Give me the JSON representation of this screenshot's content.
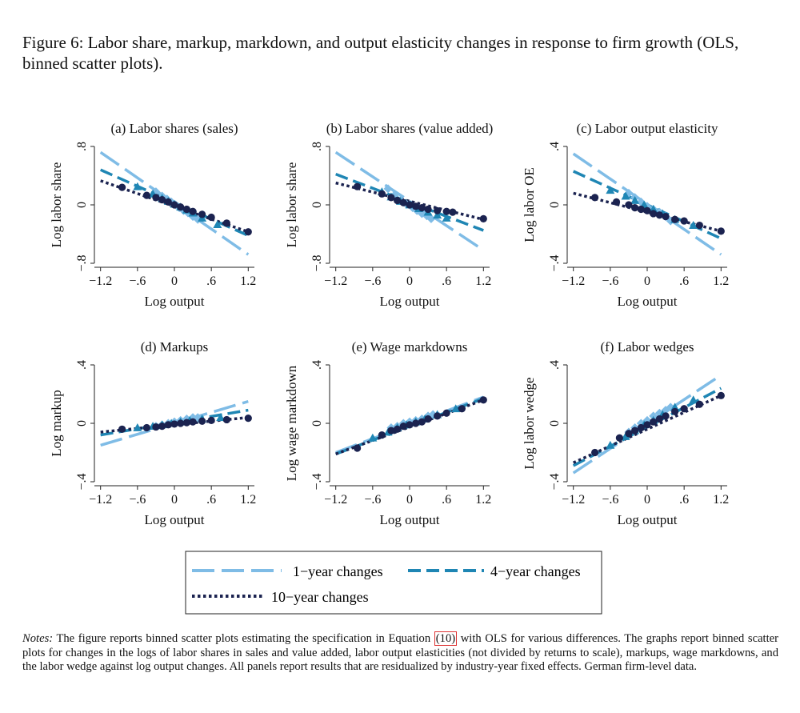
{
  "figure": {
    "title": "Figure 6: Labor share, markup, markdown, and output elasticity changes in response to firm growth (OLS, binned scatter plots)."
  },
  "colors": {
    "one_year": "#7fbce6",
    "four_year": "#1f86b4",
    "ten_year": "#1b2350",
    "axis": "#222222"
  },
  "legend": {
    "items": [
      {
        "key": "one_year",
        "label": "1−year changes",
        "dash": "long"
      },
      {
        "key": "four_year",
        "label": "4−year changes",
        "dash": "medium"
      },
      {
        "key": "ten_year",
        "label": "10−year changes",
        "dash": "dot"
      }
    ]
  },
  "chart_data": [
    {
      "type": "scatter",
      "title": "(a) Labor shares (sales)",
      "xlabel": "Log output",
      "ylabel": "Log labor share",
      "xlim": [
        -1.3,
        1.3
      ],
      "ylim": [
        -0.8,
        0.8
      ],
      "xticks": [
        "-1.2",
        "-.6",
        "0",
        ".6",
        "1.2"
      ],
      "yticks": [
        "-.8",
        "0",
        ".8"
      ],
      "lines": {
        "one_year": {
          "x": [
            -1.2,
            1.2
          ],
          "y": [
            0.72,
            -0.68
          ]
        },
        "four_year": {
          "x": [
            -1.2,
            1.2
          ],
          "y": [
            0.48,
            -0.42
          ]
        },
        "ten_year": {
          "x": [
            -1.2,
            1.2
          ],
          "y": [
            0.33,
            -0.37
          ]
        }
      },
      "series": [
        {
          "name": "1-year changes",
          "marker": "diamond",
          "x": [
            -0.3,
            -0.2,
            -0.12,
            -0.05,
            0.02,
            0.08,
            0.15,
            0.22,
            0.3,
            0.38
          ],
          "y": [
            0.18,
            0.12,
            0.08,
            0.04,
            0.0,
            -0.04,
            -0.08,
            -0.11,
            -0.16,
            -0.2
          ]
        },
        {
          "name": "4-year changes",
          "marker": "triangle",
          "x": [
            -0.6,
            -0.35,
            -0.2,
            -0.1,
            0.0,
            0.1,
            0.2,
            0.3,
            0.45,
            0.7
          ],
          "y": [
            0.25,
            0.15,
            0.09,
            0.05,
            0.01,
            -0.03,
            -0.07,
            -0.11,
            -0.18,
            -0.27
          ]
        },
        {
          "name": "10-year changes",
          "marker": "circle",
          "x": [
            -0.85,
            -0.45,
            -0.3,
            -0.2,
            -0.1,
            0.0,
            0.1,
            0.2,
            0.3,
            0.45,
            0.6,
            0.85,
            1.2
          ],
          "y": [
            0.24,
            0.13,
            0.1,
            0.07,
            0.04,
            0.0,
            -0.03,
            -0.06,
            -0.09,
            -0.13,
            -0.17,
            -0.25,
            -0.37
          ]
        }
      ]
    },
    {
      "type": "scatter",
      "title": "(b) Labor shares (value added)",
      "xlabel": "Log output",
      "ylabel": "Log labor share",
      "xlim": [
        -1.3,
        1.3
      ],
      "ylim": [
        -0.8,
        0.8
      ],
      "xticks": [
        "-1.2",
        "-.6",
        "0",
        ".6",
        "1.2"
      ],
      "yticks": [
        "-.8",
        "0",
        ".8"
      ],
      "lines": {
        "one_year": {
          "x": [
            -1.2,
            1.2
          ],
          "y": [
            0.72,
            -0.62
          ]
        },
        "four_year": {
          "x": [
            -1.2,
            1.2
          ],
          "y": [
            0.42,
            -0.35
          ]
        },
        "ten_year": {
          "x": [
            -1.2,
            1.2
          ],
          "y": [
            0.3,
            -0.2
          ]
        }
      },
      "series": [
        {
          "name": "1-year changes",
          "marker": "diamond",
          "x": [
            -0.35,
            -0.25,
            -0.15,
            -0.05,
            0.05,
            0.12,
            0.2,
            0.28,
            0.35
          ],
          "y": [
            0.22,
            0.13,
            0.06,
            0.01,
            -0.04,
            -0.08,
            -0.12,
            -0.15,
            -0.19
          ]
        },
        {
          "name": "4-year changes",
          "marker": "triangle",
          "x": [
            -0.45,
            -0.3,
            -0.15,
            0.0,
            0.15,
            0.3,
            0.45,
            0.6
          ],
          "y": [
            0.18,
            0.11,
            0.05,
            0.0,
            -0.05,
            -0.1,
            -0.14,
            -0.18
          ]
        },
        {
          "name": "10-year changes",
          "marker": "circle",
          "x": [
            -0.85,
            -0.45,
            -0.3,
            -0.2,
            -0.1,
            0.0,
            0.1,
            0.2,
            0.3,
            0.45,
            0.6,
            0.7,
            1.2
          ],
          "y": [
            0.25,
            0.15,
            0.1,
            0.06,
            0.03,
            0.0,
            -0.02,
            -0.04,
            -0.06,
            -0.08,
            -0.09,
            -0.1,
            -0.19
          ]
        }
      ]
    },
    {
      "type": "scatter",
      "title": "(c) Labor output elasticity",
      "xlabel": "Log output",
      "ylabel": "Log labor OE",
      "xlim": [
        -1.3,
        1.3
      ],
      "ylim": [
        -0.4,
        0.4
      ],
      "xticks": [
        "-1.2",
        "-.6",
        "0",
        ".6",
        "1.2"
      ],
      "yticks": [
        "-.4",
        "0",
        ".4"
      ],
      "lines": {
        "one_year": {
          "x": [
            -1.2,
            1.2
          ],
          "y": [
            0.35,
            -0.34
          ]
        },
        "four_year": {
          "x": [
            -1.2,
            1.2
          ],
          "y": [
            0.23,
            -0.23
          ]
        },
        "ten_year": {
          "x": [
            -1.2,
            1.2
          ],
          "y": [
            0.08,
            -0.18
          ]
        }
      },
      "series": [
        {
          "name": "1-year changes",
          "marker": "diamond",
          "x": [
            -0.3,
            -0.2,
            -0.1,
            0.0,
            0.1,
            0.2,
            0.3,
            0.38
          ],
          "y": [
            0.08,
            0.05,
            0.02,
            -0.01,
            -0.03,
            -0.05,
            -0.08,
            -0.11
          ]
        },
        {
          "name": "4-year changes",
          "marker": "triangle",
          "x": [
            -0.6,
            -0.35,
            -0.2,
            -0.05,
            0.1,
            0.25,
            0.45,
            0.75
          ],
          "y": [
            0.1,
            0.06,
            0.03,
            0.0,
            -0.03,
            -0.06,
            -0.1,
            -0.14
          ]
        },
        {
          "name": "10-year changes",
          "marker": "circle",
          "x": [
            -0.85,
            -0.5,
            -0.3,
            -0.2,
            -0.1,
            0.0,
            0.1,
            0.2,
            0.3,
            0.45,
            0.6,
            0.85,
            1.2
          ],
          "y": [
            0.05,
            0.02,
            0.0,
            -0.02,
            -0.03,
            -0.04,
            -0.06,
            -0.07,
            -0.08,
            -0.1,
            -0.11,
            -0.14,
            -0.18
          ]
        }
      ]
    },
    {
      "type": "scatter",
      "title": "(d) Markups",
      "xlabel": "Log output",
      "ylabel": "Log markup",
      "xlim": [
        -1.3,
        1.3
      ],
      "ylim": [
        -0.4,
        0.4
      ],
      "xticks": [
        "-1.2",
        "-.6",
        "0",
        ".6",
        "1.2"
      ],
      "yticks": [
        "-.4",
        "0",
        ".4"
      ],
      "lines": {
        "one_year": {
          "x": [
            -1.2,
            1.2
          ],
          "y": [
            -0.15,
            0.15
          ]
        },
        "four_year": {
          "x": [
            -1.2,
            1.2
          ],
          "y": [
            -0.08,
            0.09
          ]
        },
        "ten_year": {
          "x": [
            -1.2,
            1.2
          ],
          "y": [
            -0.06,
            0.04
          ]
        }
      },
      "series": [
        {
          "name": "1-year changes",
          "marker": "diamond",
          "x": [
            -0.3,
            -0.2,
            -0.1,
            0.0,
            0.1,
            0.2,
            0.3,
            0.38
          ],
          "y": [
            -0.02,
            -0.01,
            0.0,
            0.01,
            0.02,
            0.03,
            0.04,
            0.04
          ]
        },
        {
          "name": "4-year changes",
          "marker": "triangle",
          "x": [
            -0.6,
            -0.35,
            -0.2,
            -0.05,
            0.1,
            0.25,
            0.45,
            0.75
          ],
          "y": [
            -0.03,
            -0.02,
            -0.01,
            0.0,
            0.01,
            0.02,
            0.03,
            0.04
          ]
        },
        {
          "name": "10-year changes",
          "marker": "circle",
          "x": [
            -0.85,
            -0.45,
            -0.3,
            -0.2,
            -0.1,
            0.0,
            0.1,
            0.2,
            0.3,
            0.45,
            0.6,
            0.85,
            1.2
          ],
          "y": [
            -0.04,
            -0.03,
            -0.025,
            -0.02,
            -0.01,
            -0.005,
            0.0,
            0.005,
            0.01,
            0.015,
            0.02,
            0.025,
            0.035
          ]
        }
      ]
    },
    {
      "type": "scatter",
      "title": "(e) Wage markdowns",
      "xlabel": "Log output",
      "ylabel": "Log wage markdown",
      "xlim": [
        -1.3,
        1.3
      ],
      "ylim": [
        -0.4,
        0.4
      ],
      "xticks": [
        "-1.2",
        "-.6",
        "0",
        ".6",
        "1.2"
      ],
      "yticks": [
        "-.4",
        "0",
        ".4"
      ],
      "lines": {
        "one_year": {
          "x": [
            -1.2,
            1.2
          ],
          "y": [
            -0.2,
            0.18
          ]
        },
        "four_year": {
          "x": [
            -1.2,
            1.2
          ],
          "y": [
            -0.21,
            0.17
          ]
        },
        "ten_year": {
          "x": [
            -1.2,
            1.2
          ],
          "y": [
            -0.21,
            0.16
          ]
        }
      },
      "series": [
        {
          "name": "1-year changes",
          "marker": "diamond",
          "x": [
            -0.3,
            -0.2,
            -0.1,
            0.0,
            0.1,
            0.2,
            0.3,
            0.38
          ],
          "y": [
            -0.03,
            -0.02,
            0.0,
            0.01,
            0.02,
            0.03,
            0.05,
            0.06
          ]
        },
        {
          "name": "4-year changes",
          "marker": "triangle",
          "x": [
            -0.6,
            -0.35,
            -0.2,
            -0.05,
            0.1,
            0.25,
            0.45,
            0.75
          ],
          "y": [
            -0.1,
            -0.06,
            -0.03,
            -0.01,
            0.01,
            0.03,
            0.06,
            0.1
          ]
        },
        {
          "name": "10-year changes",
          "marker": "circle",
          "x": [
            -0.85,
            -0.45,
            -0.3,
            -0.2,
            -0.1,
            0.0,
            0.1,
            0.2,
            0.3,
            0.45,
            0.6,
            0.85,
            1.2
          ],
          "y": [
            -0.17,
            -0.08,
            -0.05,
            -0.04,
            -0.02,
            -0.01,
            0.0,
            0.01,
            0.03,
            0.05,
            0.07,
            0.1,
            0.16
          ]
        }
      ]
    },
    {
      "type": "scatter",
      "title": "(f) Labor wedges",
      "xlabel": "Log output",
      "ylabel": "Log labor wedge",
      "xlim": [
        -1.3,
        1.3
      ],
      "ylim": [
        -0.4,
        0.4
      ],
      "xticks": [
        "-1.2",
        "-.6",
        "0",
        ".6",
        "1.2"
      ],
      "yticks": [
        "-.4",
        "0",
        ".4"
      ],
      "lines": {
        "one_year": {
          "x": [
            -1.2,
            1.2
          ],
          "y": [
            -0.34,
            0.33
          ]
        },
        "four_year": {
          "x": [
            -1.2,
            1.2
          ],
          "y": [
            -0.29,
            0.24
          ]
        },
        "ten_year": {
          "x": [
            -1.2,
            1.2
          ],
          "y": [
            -0.27,
            0.19
          ]
        }
      },
      "series": [
        {
          "name": "1-year changes",
          "marker": "diamond",
          "x": [
            -0.3,
            -0.2,
            -0.1,
            0.0,
            0.1,
            0.2,
            0.3,
            0.38
          ],
          "y": [
            -0.06,
            -0.03,
            0.0,
            0.02,
            0.05,
            0.07,
            0.09,
            0.11
          ]
        },
        {
          "name": "4-year changes",
          "marker": "triangle",
          "x": [
            -0.6,
            -0.35,
            -0.2,
            -0.05,
            0.1,
            0.25,
            0.45,
            0.75
          ],
          "y": [
            -0.15,
            -0.09,
            -0.05,
            -0.01,
            0.02,
            0.06,
            0.11,
            0.16
          ]
        },
        {
          "name": "10-year changes",
          "marker": "circle",
          "x": [
            -0.85,
            -0.45,
            -0.3,
            -0.2,
            -0.1,
            0.0,
            0.1,
            0.2,
            0.3,
            0.45,
            0.6,
            0.85,
            1.2
          ],
          "y": [
            -0.2,
            -0.1,
            -0.07,
            -0.05,
            -0.03,
            -0.01,
            0.01,
            0.03,
            0.05,
            0.08,
            0.1,
            0.13,
            0.19
          ]
        }
      ]
    }
  ],
  "notes": {
    "label": "Notes:",
    "text_before": " The figure reports binned scatter plots estimating the specification in Equation ",
    "ref": "(10)",
    "text_after": " with OLS for various differences. The graphs report binned scatter plots for changes in the logs of labor shares in sales and value added, labor output elasticities (not divided by returns to scale), markups, wage markdowns, and the labor wedge against log output changes. All panels report results that are residualized by industry-year fixed effects. German firm-level data."
  }
}
